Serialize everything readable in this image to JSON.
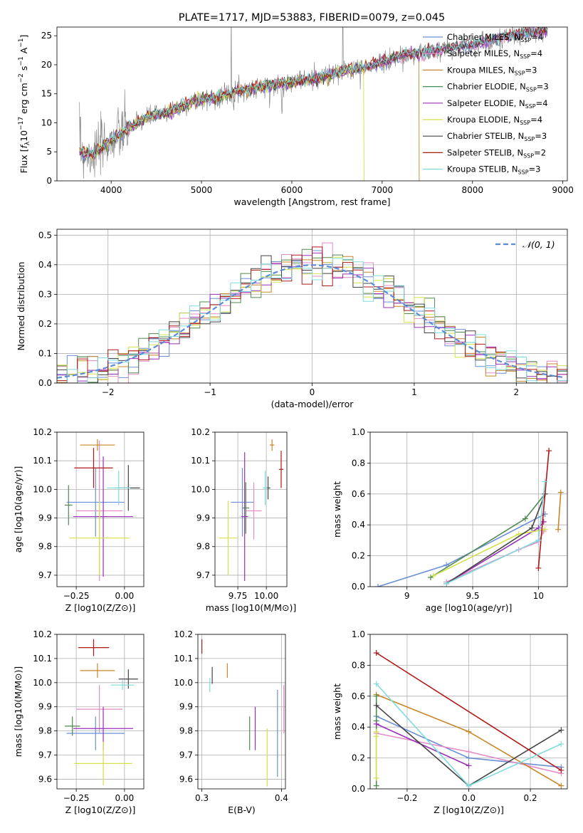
{
  "title": "PLATE=1717, MJD=53883, FIBERID=0079, z=0.045",
  "legend": [
    {
      "label": "Chabrier MILES, N",
      "sub": "SSP",
      "suffix": "=4",
      "color": "#6a8fd6"
    },
    {
      "label": "Salpeter MILES, N",
      "sub": "SSP",
      "suffix": "=4",
      "color": "#e58cc6"
    },
    {
      "label": "Kroupa MILES, N",
      "sub": "SSP",
      "suffix": "=3",
      "color": "#c8862a"
    },
    {
      "label": "Chabrier ELODIE, N",
      "sub": "SSP",
      "suffix": "=3",
      "color": "#4f8a4f"
    },
    {
      "label": "Salpeter ELODIE, N",
      "sub": "SSP",
      "suffix": "=4",
      "color": "#9a2fb8"
    },
    {
      "label": "Kroupa ELODIE, N",
      "sub": "SSP",
      "suffix": "=4",
      "color": "#d4e04a"
    },
    {
      "label": "Chabrier STELIB, N",
      "sub": "SSP",
      "suffix": "=3",
      "color": "#444444"
    },
    {
      "label": "Salpeter STELIB, N",
      "sub": "SSP",
      "suffix": "=2",
      "color": "#b01818"
    },
    {
      "label": "Kroupa STELIB, N",
      "sub": "SSP",
      "suffix": "=3",
      "color": "#7fdcdc"
    }
  ],
  "chart_data": [
    {
      "type": "line",
      "title": "PLATE=1717, MJD=53883, FIBERID=0079, z=0.045",
      "xlabel": "wavelength [Angstrom, rest frame]",
      "ylabel": "Flux [fλ10⁻¹⁷ erg cm⁻² s⁻¹ A⁻¹]",
      "xlim": [
        3400,
        9050
      ],
      "ylim": [
        0,
        26.5
      ],
      "xticks": [
        4000,
        5000,
        6000,
        7000,
        8000,
        9000
      ],
      "yticks": [
        0,
        5,
        10,
        15,
        20,
        25
      ],
      "grid": false,
      "legend_position": "right",
      "spectrum_anchors": [
        [
          3650,
          5
        ],
        [
          3800,
          4.5
        ],
        [
          4000,
          7
        ],
        [
          4200,
          9
        ],
        [
          4400,
          11
        ],
        [
          4600,
          11.5
        ],
        [
          4800,
          13
        ],
        [
          5000,
          14
        ],
        [
          5200,
          14.5
        ],
        [
          5400,
          15.5
        ],
        [
          5600,
          16
        ],
        [
          5800,
          16.5
        ],
        [
          6000,
          17
        ],
        [
          6200,
          17.5
        ],
        [
          6400,
          18
        ],
        [
          6600,
          19
        ],
        [
          6800,
          19.5
        ],
        [
          7000,
          20.5
        ],
        [
          7200,
          21.5
        ],
        [
          7400,
          22
        ],
        [
          7600,
          22.5
        ],
        [
          7800,
          23
        ],
        [
          8000,
          23.5
        ],
        [
          8200,
          24
        ],
        [
          8400,
          25
        ],
        [
          8600,
          25.5
        ],
        [
          8800,
          26
        ]
      ]
    },
    {
      "type": "line",
      "xlabel": "(data-model)/error",
      "ylabel": "Normed distribution",
      "xlim": [
        -2.5,
        2.5
      ],
      "ylim": [
        0,
        0.52
      ],
      "xticks": [
        -2,
        -1,
        0,
        1,
        2
      ],
      "yticks": [
        0.0,
        0.1,
        0.2,
        0.3,
        0.4,
        0.5
      ],
      "grid": true,
      "legend_position": "top-right",
      "series": [
        {
          "name": "𝒩(0, 1)",
          "mean": 0,
          "sigma": 1,
          "color": "#5b8bd9",
          "dashed": true
        }
      ],
      "histogram_bin_width": 0.1
    },
    {
      "type": "scatter",
      "xlabel": "Z [log10(Z/Z⊙)]",
      "ylabel": "age  [log10(age/yr)]",
      "xlim": [
        -0.35,
        0.1
      ],
      "ylim": [
        9.66,
        10.2
      ],
      "xticks": [
        -0.25,
        0.0
      ],
      "xticklabels": [
        "−0.25",
        "0.00"
      ],
      "yticks": [
        9.7,
        9.8,
        9.9,
        10.0,
        10.1,
        10.2
      ],
      "grid": true,
      "points": [
        {
          "name": "Chabrier MILES",
          "x": -0.15,
          "y": 9.955,
          "xerr": 0.15,
          "yerr": 0.12
        },
        {
          "name": "Salpeter MILES",
          "x": -0.13,
          "y": 9.925,
          "xerr": 0.12,
          "yerr": 0.245
        },
        {
          "name": "Kroupa MILES",
          "x": -0.14,
          "y": 10.155,
          "xerr": 0.09,
          "yerr": 0.02
        },
        {
          "name": "Chabrier ELODIE",
          "x": -0.29,
          "y": 9.945,
          "xerr": 0.02,
          "yerr": 0.07
        },
        {
          "name": "Salpeter ELODIE",
          "x": -0.11,
          "y": 9.905,
          "xerr": 0.155,
          "yerr": 0.21
        },
        {
          "name": "Kroupa ELODIE",
          "x": -0.13,
          "y": 9.83,
          "xerr": 0.155,
          "yerr": 0.13
        },
        {
          "name": "Chabrier STELIB",
          "x": 0.02,
          "y": 10.005,
          "xerr": 0.06,
          "yerr": 0.08
        },
        {
          "name": "Salpeter STELIB",
          "x": -0.16,
          "y": 10.075,
          "xerr": 0.1,
          "yerr": 0.07
        },
        {
          "name": "Kroupa STELIB",
          "x": -0.03,
          "y": 10.005,
          "xerr": 0.06,
          "yerr": 0.06
        }
      ]
    },
    {
      "type": "scatter",
      "xlabel": "mass [log10(M/M⊙)]",
      "xlim": [
        9.55,
        10.18
      ],
      "ylim": [
        9.66,
        10.2
      ],
      "xticks": [
        9.75,
        10.0
      ],
      "xticklabels": [
        "9.75",
        "10.00"
      ],
      "yticks": [
        9.7,
        9.8,
        9.9,
        10.0,
        10.1,
        10.2
      ],
      "grid": true,
      "points": [
        {
          "name": "Chabrier MILES",
          "x": 9.79,
          "y": 9.955,
          "xerr": 0.1,
          "yerr": 0.12
        },
        {
          "name": "Salpeter MILES",
          "x": 9.89,
          "y": 9.925,
          "xerr": 0.07,
          "yerr": 0.1
        },
        {
          "name": "Kroupa MILES",
          "x": 10.05,
          "y": 10.155,
          "xerr": 0.02,
          "yerr": 0.02
        },
        {
          "name": "Chabrier ELODIE",
          "x": 9.82,
          "y": 9.935,
          "xerr": 0.03,
          "yerr": 0.09
        },
        {
          "name": "Salpeter ELODIE",
          "x": 9.81,
          "y": 9.905,
          "xerr": 0.03,
          "yerr": 0.225
        },
        {
          "name": "Kroupa ELODIE",
          "x": 9.665,
          "y": 9.83,
          "xerr": 0.08,
          "yerr": 0.13
        },
        {
          "name": "Chabrier STELIB",
          "x": 10.015,
          "y": 10.005,
          "xerr": 0.02,
          "yerr": 0.04
        },
        {
          "name": "Salpeter STELIB",
          "x": 10.13,
          "y": 10.07,
          "xerr": 0.02,
          "yerr": 0.065
        },
        {
          "name": "Kroupa STELIB",
          "x": 9.99,
          "y": 10.005,
          "xerr": 0.02,
          "yerr": 0.06
        }
      ]
    },
    {
      "type": "line",
      "xlabel": "age  [log10(age/yr)]",
      "ylabel": "mass weight",
      "xlim": [
        8.72,
        10.22
      ],
      "ylim": [
        0,
        1
      ],
      "xticks": [
        9.0,
        9.5,
        10.0
      ],
      "yticks": [
        0.0,
        0.2,
        0.4,
        0.6,
        0.8,
        1.0
      ],
      "grid": true,
      "series": [
        {
          "name": "Chabrier MILES",
          "x": [
            8.78,
            9.3,
            10.05
          ],
          "y": [
            0.0,
            0.14,
            0.47
          ]
        },
        {
          "name": "Salpeter MILES",
          "x": [
            9.3,
            9.85,
            10.0,
            10.04
          ],
          "y": [
            0.03,
            0.24,
            0.29,
            0.36
          ]
        },
        {
          "name": "Kroupa MILES",
          "x": [
            10.15,
            10.17
          ],
          "y": [
            0.37,
            0.61
          ]
        },
        {
          "name": "Chabrier ELODIE",
          "x": [
            9.18,
            9.9,
            10.05
          ],
          "y": [
            0.06,
            0.44,
            0.6
          ]
        },
        {
          "name": "Salpeter ELODIE",
          "x": [
            9.3,
            10.0,
            10.04
          ],
          "y": [
            0.02,
            0.38,
            0.42
          ]
        },
        {
          "name": "Kroupa ELODIE",
          "x": [
            9.2,
            9.85,
            10.05
          ],
          "y": [
            0.07,
            0.34,
            0.37
          ]
        },
        {
          "name": "Chabrier STELIB",
          "x": [
            9.3,
            9.95,
            10.05
          ],
          "y": [
            0.02,
            0.38,
            0.6
          ]
        },
        {
          "name": "Salpeter STELIB",
          "x": [
            10.0,
            10.08
          ],
          "y": [
            0.12,
            0.88
          ]
        },
        {
          "name": "Kroupa STELIB",
          "x": [
            9.3,
            10.0,
            10.05
          ],
          "y": [
            0.02,
            0.3,
            0.68
          ]
        }
      ]
    },
    {
      "type": "scatter",
      "xlabel": "Z [log10(Z/Z⊙)]",
      "ylabel": "mass [log10(M/M⊙)]",
      "xlim": [
        -0.35,
        0.1
      ],
      "ylim": [
        9.56,
        10.2
      ],
      "xticks": [
        -0.25,
        0.0
      ],
      "xticklabels": [
        "−0.25",
        "0.00"
      ],
      "yticks": [
        9.6,
        9.7,
        9.8,
        9.9,
        10.0,
        10.1,
        10.2
      ],
      "grid": true,
      "points": [
        {
          "name": "Chabrier MILES",
          "x": -0.15,
          "y": 9.79,
          "xerr": 0.15,
          "yerr": 0.07
        },
        {
          "name": "Salpeter MILES",
          "x": -0.13,
          "y": 9.89,
          "xerr": 0.12,
          "yerr": 0.1
        },
        {
          "name": "Kroupa MILES",
          "x": -0.14,
          "y": 10.05,
          "xerr": 0.09,
          "yerr": 0.03
        },
        {
          "name": "Chabrier ELODIE",
          "x": -0.27,
          "y": 9.82,
          "xerr": 0.04,
          "yerr": 0.04
        },
        {
          "name": "Salpeter ELODIE",
          "x": -0.11,
          "y": 9.81,
          "xerr": 0.155,
          "yerr": 0.09
        },
        {
          "name": "Kroupa ELODIE",
          "x": -0.11,
          "y": 9.665,
          "xerr": 0.15,
          "yerr": 0.09
        },
        {
          "name": "Chabrier STELIB",
          "x": 0.02,
          "y": 10.015,
          "xerr": 0.05,
          "yerr": 0.04
        },
        {
          "name": "Salpeter STELIB",
          "x": -0.16,
          "y": 10.145,
          "xerr": 0.08,
          "yerr": 0.035
        },
        {
          "name": "Kroupa STELIB",
          "x": -0.01,
          "y": 9.99,
          "xerr": 0.06,
          "yerr": 0.02
        }
      ]
    },
    {
      "type": "scatter",
      "xlabel": "E(B-V)",
      "xlim": [
        0.295,
        0.405
      ],
      "ylim": [
        9.56,
        10.2
      ],
      "xticks": [
        0.3,
        0.4
      ],
      "xticklabels": [
        "0.3",
        "0.4"
      ],
      "yticks": [
        9.6,
        9.7,
        9.8,
        9.9,
        10.0,
        10.1,
        10.2
      ],
      "grid": true,
      "points": [
        {
          "name": "Chabrier MILES",
          "x": 0.395,
          "y": 9.79,
          "yerr": 0.18
        },
        {
          "name": "Salpeter MILES",
          "x": 0.403,
          "y": 9.89,
          "yerr": 0.1
        },
        {
          "name": "Kroupa MILES",
          "x": 0.332,
          "y": 10.05,
          "yerr": 0.03
        },
        {
          "name": "Chabrier ELODIE",
          "x": 0.36,
          "y": 9.79,
          "yerr": 0.07
        },
        {
          "name": "Salpeter ELODIE",
          "x": 0.367,
          "y": 9.81,
          "yerr": 0.09
        },
        {
          "name": "Kroupa ELODIE",
          "x": 0.382,
          "y": 9.69,
          "yerr": 0.12
        },
        {
          "name": "Chabrier STELIB",
          "x": 0.313,
          "y": 10.03,
          "yerr": 0.035
        },
        {
          "name": "Salpeter STELIB",
          "x": 0.3,
          "y": 10.15,
          "yerr": 0.03
        },
        {
          "name": "Kroupa STELIB",
          "x": 0.31,
          "y": 9.99,
          "yerr": 0.03
        }
      ]
    },
    {
      "type": "line",
      "xlabel": "Z [log10(Z/Z⊙)]",
      "ylabel": "mass weight",
      "xlim": [
        -0.32,
        0.32
      ],
      "ylim": [
        0,
        1
      ],
      "xticks": [
        -0.2,
        0.0,
        0.2
      ],
      "xticklabels": [
        "−0.2",
        "0.0",
        "0.2"
      ],
      "yticks": [
        0.0,
        0.2,
        0.4,
        0.6,
        0.8,
        1.0
      ],
      "grid": true,
      "series": [
        {
          "name": "Chabrier MILES",
          "x": [
            -0.3,
            0.0,
            0.3
          ],
          "y": [
            0.47,
            0.2,
            0.14
          ]
        },
        {
          "name": "Salpeter MILES",
          "x": [
            -0.3,
            0.0,
            0.3
          ],
          "y": [
            0.36,
            0.24,
            0.1
          ]
        },
        {
          "name": "Kroupa MILES",
          "x": [
            -0.3,
            0.0,
            0.3
          ],
          "y": [
            0.61,
            0.37,
            0.02
          ]
        },
        {
          "name": "Chabrier ELODIE",
          "x": [
            -0.3,
            -0.3,
            -0.3
          ],
          "y": [
            0.6,
            0.44,
            0.02
          ]
        },
        {
          "name": "Salpeter ELODIE",
          "x": [
            -0.3,
            0.0
          ],
          "y": [
            0.42,
            0.15
          ]
        },
        {
          "name": "Kroupa ELODIE",
          "x": [
            -0.3,
            -0.3,
            -0.3
          ],
          "y": [
            0.37,
            0.34,
            0.07
          ]
        },
        {
          "name": "Chabrier STELIB",
          "x": [
            -0.3,
            0.0,
            0.3
          ],
          "y": [
            0.54,
            0.02,
            0.38
          ]
        },
        {
          "name": "Salpeter STELIB",
          "x": [
            -0.3,
            0.3
          ],
          "y": [
            0.88,
            0.12
          ]
        },
        {
          "name": "Kroupa STELIB",
          "x": [
            -0.3,
            0.0,
            0.3
          ],
          "y": [
            0.68,
            0.02,
            0.29
          ]
        }
      ]
    }
  ]
}
